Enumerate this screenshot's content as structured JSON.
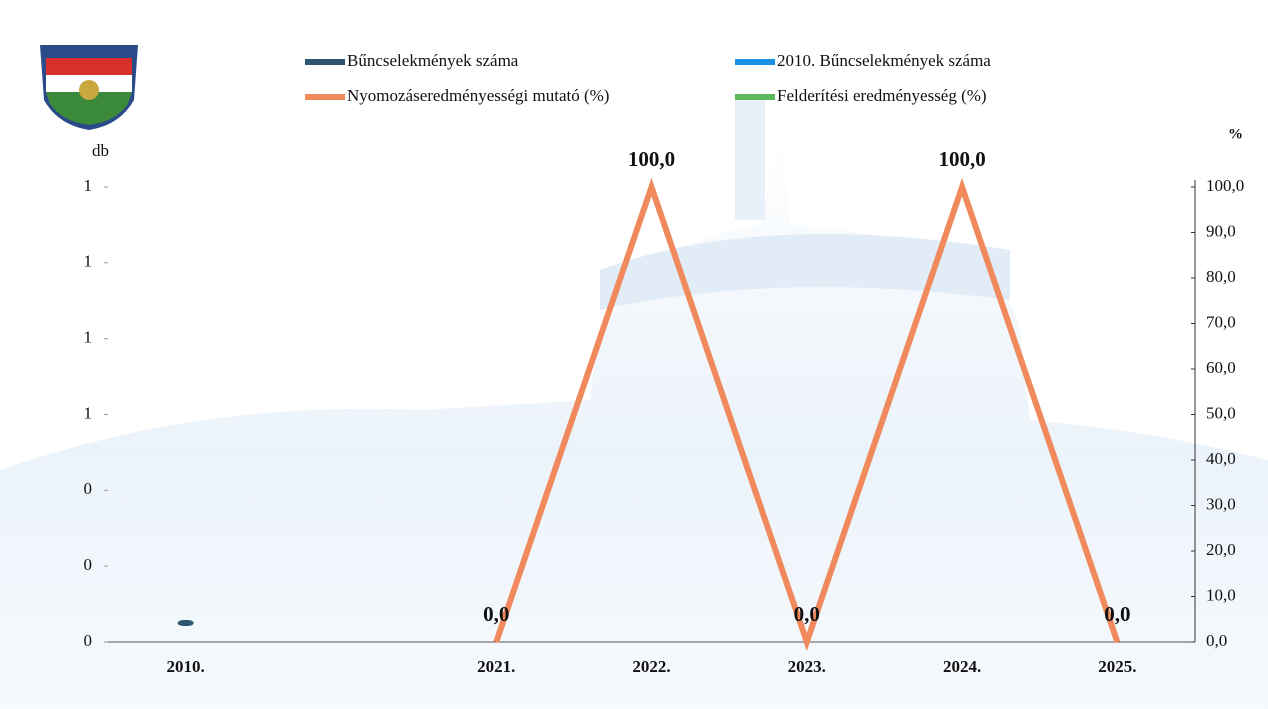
{
  "chart_data": {
    "type": "combo",
    "y_label": "db",
    "y2_label": "%",
    "categories": [
      "2010.",
      null,
      "2021.",
      "2022.",
      "2023.",
      "2024.",
      "2025."
    ],
    "series": [
      {
        "name": "Bűncselekmények száma",
        "type": "bar",
        "color": "#2e5670",
        "values": [
          0,
          null,
          null,
          null,
          null,
          null,
          null
        ]
      },
      {
        "name": "2010. Bűncselekmények száma",
        "type": "line",
        "color": "#1a8fe8",
        "values": [
          null,
          null,
          null,
          null,
          null,
          null,
          null
        ]
      },
      {
        "name": "Nyomozáseredményességi mutató (%)",
        "type": "line",
        "axis": "y2",
        "color": "#f08a5d",
        "values": [
          null,
          null,
          0,
          100,
          0,
          100,
          0
        ],
        "value_labels": [
          null,
          null,
          "0,0",
          "100,0",
          "0,0",
          "100,0",
          "0,0"
        ]
      },
      {
        "name": "Felderítési eredményesség (%)",
        "type": "line",
        "axis": "y2",
        "color": "#5cb85c",
        "values": [
          null,
          null,
          null,
          null,
          null,
          null,
          null
        ]
      }
    ],
    "ylim": [
      0,
      1.2
    ],
    "yticks": [
      0,
      {
        "value": 0.2,
        "label": "0"
      },
      {
        "value": 0.4,
        "label": "0"
      },
      {
        "value": 0.6,
        "label": "1"
      },
      {
        "value": 0.8,
        "label": "1"
      },
      {
        "value": 1.0,
        "label": "1"
      },
      {
        "value": 1.2,
        "label": "1"
      }
    ],
    "y2lim": [
      0,
      100
    ],
    "y2ticks": [
      {
        "value": 0,
        "label": "0,0"
      },
      {
        "value": 10,
        "label": "10,0"
      },
      {
        "value": 20,
        "label": "20,0"
      },
      {
        "value": 30,
        "label": "30,0"
      },
      {
        "value": 40,
        "label": "40,0"
      },
      {
        "value": 50,
        "label": "50,0"
      },
      {
        "value": 60,
        "label": "60,0"
      },
      {
        "value": 70,
        "label": "70,0"
      },
      {
        "value": 80,
        "label": "80,0"
      },
      {
        "value": 90,
        "label": "90,0"
      },
      {
        "value": 100,
        "label": "100,0"
      }
    ],
    "grid": false
  }
}
